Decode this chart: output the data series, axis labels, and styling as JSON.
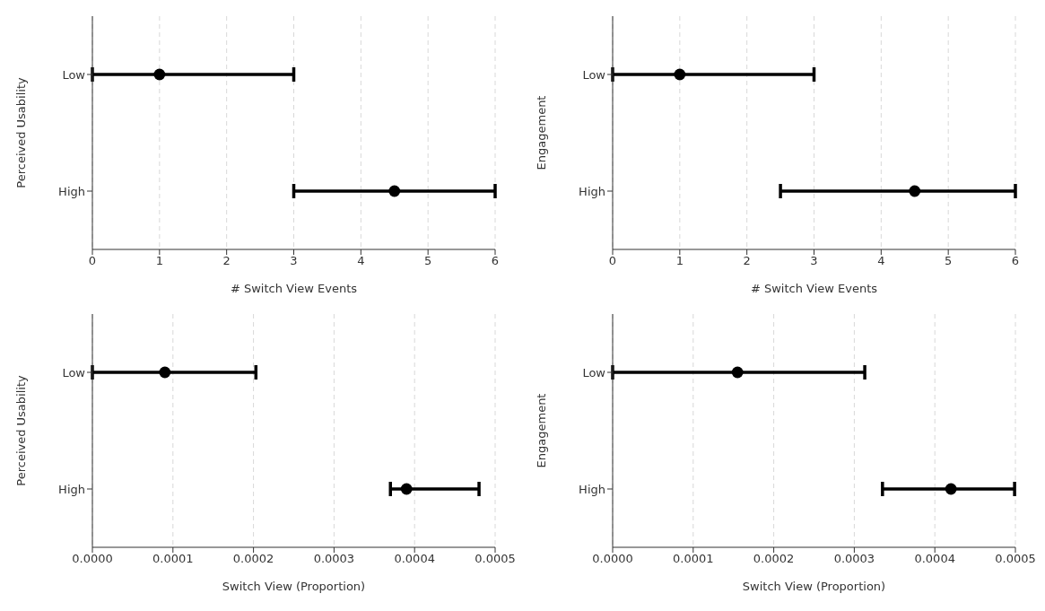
{
  "chart_data": [
    {
      "type": "scatter",
      "orientation": "horizontal",
      "categories": [
        "Low",
        "High"
      ],
      "values": [
        1,
        4.5
      ],
      "errors": [
        [
          0,
          3
        ],
        [
          3,
          6
        ]
      ],
      "color": "#000000",
      "marker": "circle",
      "xlim": [
        0,
        6
      ],
      "xticks": [
        0,
        1,
        2,
        3,
        4,
        5,
        6
      ],
      "xlabel": "# Switch View Events",
      "ylabel": "Perceived Usability",
      "grid": "x",
      "legend": false
    },
    {
      "type": "scatter",
      "orientation": "horizontal",
      "categories": [
        "Low",
        "High"
      ],
      "values": [
        1,
        4.5
      ],
      "errors": [
        [
          0,
          3
        ],
        [
          2.5,
          6
        ]
      ],
      "color": "#000000",
      "marker": "circle",
      "xlim": [
        0,
        6
      ],
      "xticks": [
        0,
        1,
        2,
        3,
        4,
        5,
        6
      ],
      "xlabel": "# Switch View Events",
      "ylabel": "Engagement",
      "grid": "x",
      "legend": false
    },
    {
      "type": "scatter",
      "orientation": "horizontal",
      "categories": [
        "Low",
        "High"
      ],
      "values": [
        9e-05,
        0.00039
      ],
      "errors": [
        [
          0,
          0.000203
        ],
        [
          0.00037,
          0.00048
        ]
      ],
      "color": "#000000",
      "marker": "circle",
      "xlim": [
        0,
        0.0005
      ],
      "xticks": [
        {
          "value": 0,
          "label": "0.0000"
        },
        {
          "value": 0.0001,
          "label": "0.0001"
        },
        {
          "value": 0.0002,
          "label": "0.0002"
        },
        {
          "value": 0.0003,
          "label": "0.0003"
        },
        {
          "value": 0.0004,
          "label": "0.0004"
        },
        {
          "value": 0.0005,
          "label": "0.0005"
        }
      ],
      "xlabel": "Switch View (Proportion)",
      "ylabel": "Perceived Usability",
      "grid": "x",
      "legend": false
    },
    {
      "type": "scatter",
      "orientation": "horizontal",
      "categories": [
        "Low",
        "High"
      ],
      "values": [
        0.000155,
        0.00042
      ],
      "errors": [
        [
          0,
          0.000313
        ],
        [
          0.000335,
          0.000499
        ]
      ],
      "color": "#000000",
      "marker": "circle",
      "xlim": [
        0,
        0.0005
      ],
      "xticks": [
        {
          "value": 0,
          "label": "0.0000"
        },
        {
          "value": 0.0001,
          "label": "0.0001"
        },
        {
          "value": 0.0002,
          "label": "0.0002"
        },
        {
          "value": 0.0003,
          "label": "0.0003"
        },
        {
          "value": 0.0004,
          "label": "0.0004"
        },
        {
          "value": 0.0005,
          "label": "0.0005"
        }
      ],
      "xlabel": "Switch View (Proportion)",
      "ylabel": "Engagement",
      "grid": "x",
      "legend": false
    }
  ]
}
